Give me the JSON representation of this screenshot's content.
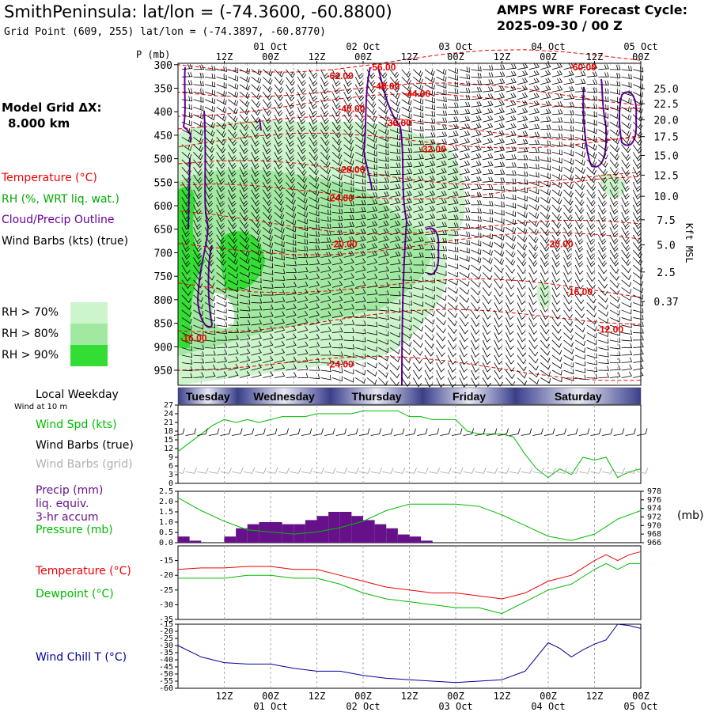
{
  "header": {
    "title": "SmithPeninsula:  lat/lon = (-74.3600, -60.8800)",
    "grid_point": "Grid Point (609, 255) lat/lon = (-74.3897, -60.8770)",
    "cycle_line1": "AMPS WRF Forecast Cycle:",
    "cycle_line2": "2025-09-30 / 00  Z"
  },
  "left_panel": {
    "model_grid": "Model Grid ΔX:",
    "grid_dx": "8.000 km",
    "temperature_label": "Temperature (°C)",
    "rh_label": "RH (%, WRT liq. wat.)",
    "cloud_label": "Cloud/Precip Outline",
    "wind_label": "Wind Barbs (kts) (true)",
    "rh70": "RH > 70%",
    "rh80": "RH > 80%",
    "rh90": "RH > 90%",
    "local_weekday": "Local Weekday",
    "wind_10m": "Wind at 10 m",
    "wind_spd": "Wind Spd (kts)",
    "wind_barbs_true": "Wind Barbs (true)",
    "wind_barbs_grid": "Wind Barbs (grid)",
    "precip1": "Precip (mm)",
    "precip2": "liq. equiv.",
    "precip3": "3-hr accum",
    "pressure": "Pressure (mb)",
    "pressure_unit": "(mb)",
    "temperature": "Temperature (°C)",
    "dewpoint": "Dewpoint (°C)",
    "wind_chill": "Wind Chill T (°C)",
    "p_axis_title": "P (mb)",
    "kft_label": "Kft MSL"
  },
  "colors": {
    "rh70": "#ccf5cc",
    "rh80": "#a1e8a1",
    "rh90": "#33dd33",
    "temp": "#ee0000",
    "cloud": "#660099",
    "green": "#00bb00",
    "precip": "#66118a",
    "windchill": "#000099",
    "grey": "#a0a0a0"
  },
  "chart_data": [
    {
      "type": "heatmap",
      "title": "Vertical cross-section: RH, temperature, wind barbs",
      "time_ticks": [
        "12Z",
        "00Z",
        "12Z",
        "00Z",
        "12Z",
        "00Z",
        "12Z",
        "00Z",
        "12Z",
        "00Z"
      ],
      "time_hours": [
        12,
        24,
        36,
        48,
        60,
        72,
        84,
        96,
        108,
        120
      ],
      "date_labels_top": [
        "01 Oct",
        "02 Oct",
        "03 Oct",
        "04 Oct",
        "05 Oct"
      ],
      "date_hours": [
        24,
        48,
        72,
        96,
        120
      ],
      "pressure_levels": [
        300,
        350,
        400,
        450,
        500,
        550,
        600,
        650,
        700,
        750,
        800,
        850,
        900,
        950
      ],
      "kft_ticks": [
        "25.0",
        "22.5",
        "20.0",
        "17.5",
        "15.0",
        "12.5",
        "10.0",
        "7.5",
        "5.0",
        "2.5",
        "0.37"
      ],
      "kft_pressure": [
        351,
        383,
        417,
        453,
        493,
        535,
        580,
        630,
        683,
        741,
        804,
        872,
        945,
        987
      ],
      "temperature_labels": [
        {
          "t": "-56.00",
          "hour": 53,
          "p": 304
        },
        {
          "t": "-62.00",
          "hour": 42,
          "p": 322
        },
        {
          "t": "-60.00",
          "hour": 105,
          "p": 304
        },
        {
          "t": "-48.00",
          "hour": 54,
          "p": 344
        },
        {
          "t": "-44.00",
          "hour": 62,
          "p": 360
        },
        {
          "t": "-40.00",
          "hour": 45,
          "p": 392
        },
        {
          "t": "-36.00",
          "hour": 57,
          "p": 422
        },
        {
          "t": "-32.00",
          "hour": 66,
          "p": 478
        },
        {
          "t": "-28.00",
          "hour": 45,
          "p": 522
        },
        {
          "t": "-24.00",
          "hour": 42,
          "p": 582
        },
        {
          "t": "-20.00",
          "hour": 43,
          "p": 680
        },
        {
          "t": "-20.00",
          "hour": 99,
          "p": 680
        },
        {
          "t": "-16.00",
          "hour": 104,
          "p": 782
        },
        {
          "t": "-12.00",
          "hour": 112,
          "p": 862
        },
        {
          "t": "-16.00",
          "hour": 4,
          "p": 880
        },
        {
          "t": "-24.00",
          "hour": 42,
          "p": 936
        }
      ]
    },
    {
      "type": "line",
      "title": "10 m wind speed",
      "ylabel": "kts",
      "ylim": [
        0,
        27
      ],
      "yticks": [
        0,
        3,
        6,
        9,
        12,
        15,
        18,
        21,
        24,
        27
      ],
      "x_hours": [
        0,
        3,
        6,
        9,
        12,
        15,
        18,
        21,
        24,
        27,
        30,
        33,
        36,
        39,
        42,
        45,
        48,
        51,
        54,
        57,
        60,
        63,
        66,
        69,
        72,
        75,
        78,
        81,
        84,
        87,
        90,
        93,
        96,
        99,
        102,
        105,
        108,
        111,
        114,
        117,
        120
      ],
      "values": [
        11,
        14,
        17,
        20,
        22,
        21,
        22,
        21,
        22,
        23,
        23,
        23,
        24,
        24,
        24,
        24,
        25,
        25,
        25,
        25,
        23,
        23,
        22,
        22,
        22,
        18,
        17,
        17,
        17,
        16,
        10,
        5,
        2,
        5,
        3,
        9,
        8,
        9,
        2,
        4,
        5
      ]
    },
    {
      "type": "bar",
      "title": "Precip 3-hr accum (mm) and sea-level pressure (mb)",
      "ylim": [
        0,
        2.5
      ],
      "yticks": [
        "0.0",
        "0.5",
        "1.0",
        "1.5",
        "2.0",
        "2.5"
      ],
      "pressure_ticks": [
        "966",
        "968",
        "970",
        "972",
        "974",
        "976",
        "978"
      ],
      "pressure_range": [
        966,
        978
      ],
      "x_hours": [
        0,
        3,
        6,
        9,
        12,
        15,
        18,
        21,
        24,
        27,
        30,
        33,
        36,
        39,
        42,
        45,
        48,
        51,
        54,
        57,
        60,
        63,
        66,
        69,
        72
      ],
      "precip": [
        0.3,
        0.1,
        0.0,
        0.0,
        0.3,
        0.7,
        0.9,
        1.0,
        1.0,
        0.9,
        0.9,
        1.1,
        1.3,
        1.5,
        1.5,
        1.3,
        1.1,
        0.9,
        0.7,
        0.4,
        0.3,
        0.1,
        0.0,
        0.0,
        0.0
      ],
      "pressure_x": [
        0,
        6,
        12,
        18,
        24,
        30,
        36,
        42,
        48,
        54,
        60,
        66,
        72,
        78,
        84,
        90,
        96,
        102,
        108,
        114,
        120
      ],
      "pressure": [
        976.5,
        973.5,
        971,
        969,
        968.5,
        968,
        968.5,
        969.5,
        971,
        973.5,
        975,
        975,
        975,
        974.5,
        972.5,
        970,
        967.5,
        966.5,
        968,
        971.5,
        973.5
      ]
    },
    {
      "type": "line",
      "title": "Temperature and Dewpoint (°C)",
      "ylim": [
        -35,
        -10
      ],
      "yticks": [
        "-15",
        "-20",
        "-25",
        "-30",
        "-35"
      ],
      "x_hours": [
        0,
        6,
        12,
        18,
        24,
        30,
        36,
        42,
        48,
        54,
        60,
        66,
        72,
        78,
        84,
        90,
        96,
        102,
        108,
        111,
        114,
        117,
        120
      ],
      "series": [
        {
          "name": "Temperature",
          "values": [
            -18,
            -17.5,
            -17.5,
            -17,
            -17,
            -18,
            -18,
            -20,
            -22,
            -24,
            -25,
            -26,
            -26,
            -27,
            -28,
            -26,
            -22,
            -20,
            -15,
            -13,
            -15,
            -13,
            -12
          ]
        },
        {
          "name": "Dewpoint",
          "values": [
            -21,
            -21,
            -21,
            -20,
            -20,
            -21,
            -21,
            -23,
            -26,
            -28,
            -29,
            -30,
            -31,
            -31,
            -33,
            -29,
            -25,
            -23,
            -18,
            -16,
            -18,
            -16,
            -16
          ]
        }
      ]
    },
    {
      "type": "line",
      "title": "Wind Chill T (°C)",
      "ylim": [
        -60,
        -15
      ],
      "yticks": [
        "-15",
        "-20",
        "-25",
        "-30",
        "-35",
        "-40",
        "-45",
        "-50",
        "-55",
        "-60"
      ],
      "x_hours": [
        0,
        6,
        12,
        18,
        24,
        30,
        36,
        42,
        48,
        54,
        60,
        66,
        72,
        78,
        84,
        90,
        96,
        99,
        102,
        105,
        108,
        111,
        114,
        117,
        120
      ],
      "values": [
        -30,
        -38,
        -42,
        -43,
        -43,
        -46,
        -48,
        -48,
        -51,
        -53,
        -54,
        -55,
        -56,
        -55,
        -54,
        -48,
        -28,
        -32,
        -38,
        -33,
        -29,
        -26,
        -15,
        -16,
        -18
      ]
    }
  ],
  "weekday_bar": [
    "Tuesday",
    "Wednesday",
    "Thursday",
    "Friday",
    "Saturday"
  ],
  "bottom_times": [
    "12Z",
    "00Z",
    "12Z",
    "00Z",
    "12Z",
    "00Z",
    "12Z",
    "00Z",
    "12Z",
    "00Z"
  ],
  "bottom_dates": [
    "01 Oct",
    "02 Oct",
    "03 Oct",
    "04 Oct",
    "05 Oct"
  ]
}
